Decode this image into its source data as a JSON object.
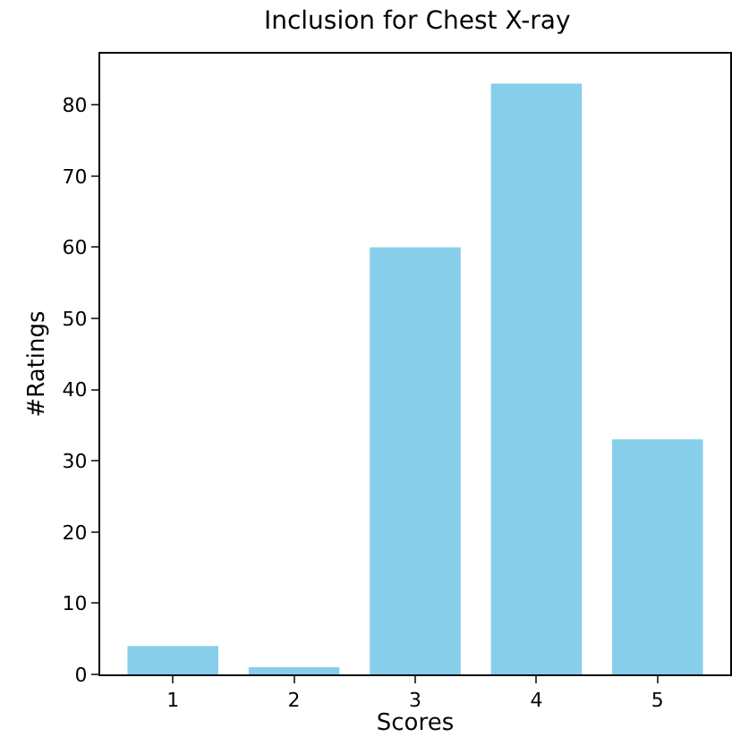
{
  "chart_data": {
    "type": "bar",
    "title": "Inclusion for Chest X-ray",
    "xlabel": "Scores",
    "ylabel": "#Ratings",
    "categories": [
      "1",
      "2",
      "3",
      "4",
      "5"
    ],
    "values": [
      4,
      1,
      60,
      83,
      33
    ],
    "color": "#87ceeb",
    "ylim": [
      0,
      87.2
    ],
    "yticks": [
      0,
      10,
      20,
      30,
      40,
      50,
      60,
      70,
      80
    ],
    "grid": false
  }
}
